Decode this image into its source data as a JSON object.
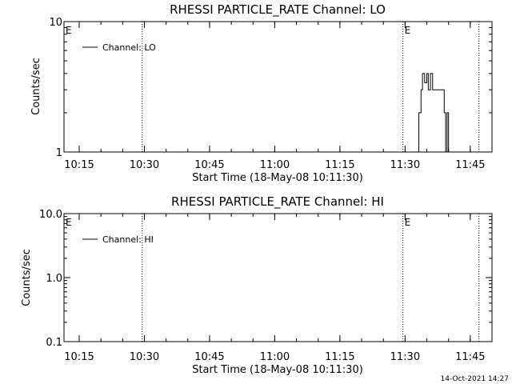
{
  "footer": {
    "timestamp": "14-Oct-2021 14:27"
  },
  "chart_data": [
    {
      "type": "line",
      "title": "RHESSI PARTICLE_RATE Channel: LO",
      "xlabel": "Start Time (18-May-08 10:11:30)",
      "ylabel": "Counts/sec",
      "y_scale": "log",
      "ylim": [
        1,
        10
      ],
      "y_ticks": [
        "1",
        "10"
      ],
      "x_ticks": [
        "10:15",
        "10:30",
        "10:45",
        "11:00",
        "11:15",
        "11:30",
        "11:45"
      ],
      "xlim": [
        "10:11:30",
        "11:50:00"
      ],
      "grid": false,
      "legend_position": "top-left",
      "event_marker_label": "E",
      "event_markers": [
        {
          "time": "10:11:30",
          "label": "E"
        },
        {
          "time": "11:29:30",
          "label": "E"
        }
      ],
      "dotted_lines": [
        "10:29:30",
        "11:29:30",
        "11:47:00"
      ],
      "series": [
        {
          "name": "Channel: LO",
          "x": [
            "11:32:30",
            "11:33:10",
            "11:33:40",
            "11:34:00",
            "11:34:30",
            "11:35:00",
            "11:35:20",
            "11:35:50",
            "11:36:20",
            "11:37:00",
            "11:38:30",
            "11:39:00",
            "11:39:20",
            "11:39:40",
            "11:40:00"
          ],
          "values": [
            1,
            2,
            3,
            4,
            3.4,
            4,
            3,
            4,
            3,
            3,
            3,
            2,
            1,
            2,
            1
          ]
        }
      ]
    },
    {
      "type": "line",
      "title": "RHESSI PARTICLE_RATE Channel: HI",
      "xlabel": "Start Time (18-May-08 10:11:30)",
      "ylabel": "Counts/sec",
      "y_scale": "log",
      "ylim": [
        0.1,
        10
      ],
      "y_ticks": [
        "0.1",
        "1.0",
        "10.0"
      ],
      "x_ticks": [
        "10:15",
        "10:30",
        "10:45",
        "11:00",
        "11:15",
        "11:30",
        "11:45"
      ],
      "xlim": [
        "10:11:30",
        "11:50:00"
      ],
      "grid": false,
      "legend_position": "top-left",
      "event_marker_label": "E",
      "event_markers": [
        {
          "time": "10:11:30",
          "label": "E"
        },
        {
          "time": "11:29:30",
          "label": "E"
        }
      ],
      "dotted_lines": [
        "10:29:30",
        "11:29:30",
        "11:47:00"
      ],
      "series": [
        {
          "name": "Channel: HI",
          "x": [],
          "values": []
        }
      ]
    }
  ]
}
